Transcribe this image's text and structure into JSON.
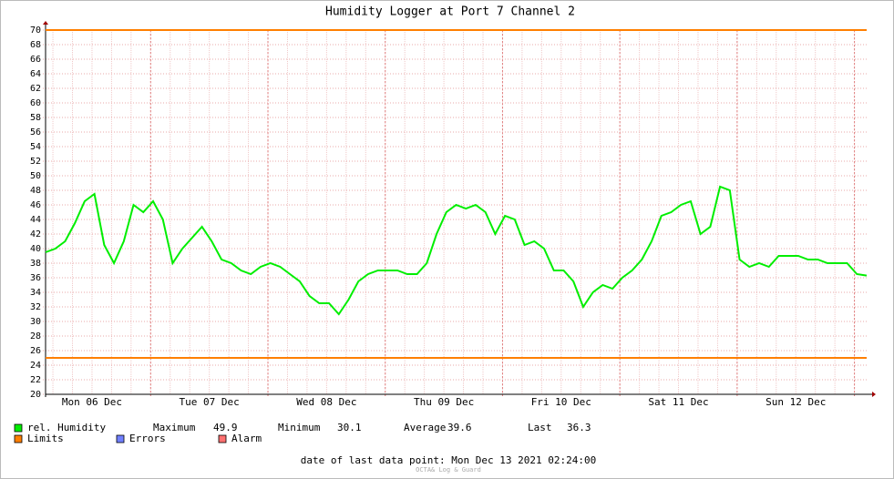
{
  "chart_data": {
    "type": "line",
    "title": "Humidity Logger at Port 7 Channel 2",
    "x": [
      0,
      1,
      2,
      3,
      4,
      5,
      6,
      7,
      8,
      9,
      10,
      11,
      12,
      13,
      14,
      15,
      16,
      17,
      18,
      19,
      20,
      21,
      22,
      23,
      24,
      25,
      26,
      27,
      28,
      29,
      30,
      31,
      32,
      33,
      34,
      35,
      36,
      37,
      38,
      39,
      40,
      41,
      42,
      43,
      44,
      45,
      46,
      47,
      48,
      49,
      50,
      51,
      52,
      53,
      54,
      55,
      56,
      57,
      58,
      59,
      60,
      61,
      62,
      63,
      64,
      65,
      66,
      67,
      68,
      69,
      70,
      71,
      72,
      73,
      74,
      75,
      76,
      77,
      78,
      79,
      80,
      81,
      82,
      83,
      84
    ],
    "series": [
      {
        "name": "rel. Humidity",
        "color": "#00ee00",
        "values": [
          39.5,
          40,
          41,
          43.5,
          46.5,
          47.5,
          40.5,
          38,
          41,
          46,
          45,
          46.5,
          44,
          38,
          40,
          41.5,
          43,
          41,
          38.5,
          38,
          37,
          36.5,
          37.5,
          38,
          37.5,
          36.5,
          35.5,
          33.5,
          32.5,
          32.5,
          31,
          33,
          35.5,
          36.5,
          37,
          37,
          37,
          36.5,
          36.5,
          38,
          42,
          45,
          46,
          45.5,
          46,
          45,
          42,
          44.5,
          44,
          40.5,
          41,
          40,
          37,
          37,
          35.5,
          32,
          34,
          35,
          34.5,
          36,
          37,
          38.5,
          41,
          44.5,
          45,
          46,
          46.5,
          42,
          43,
          48.5,
          48,
          38.5,
          37.5,
          38,
          37.5,
          39,
          39,
          39,
          38.5,
          38.5,
          38,
          38,
          38,
          36.5,
          36.3
        ]
      }
    ],
    "limits": {
      "name": "Limits",
      "color": "#ff7f00",
      "values": [
        70,
        25
      ]
    },
    "legend_extra": [
      {
        "name": "Errors",
        "color": "#7080ff"
      },
      {
        "name": "Alarm",
        "color": "#ff7070"
      }
    ],
    "stats": [
      {
        "label": "Maximum",
        "value": 49.9
      },
      {
        "label": "Minimum",
        "value": 30.1
      },
      {
        "label": "Average",
        "value": 39.6
      },
      {
        "label": "Last",
        "value": 36.3
      }
    ],
    "footer": "date of last data point:  Mon Dec 13 2021 02:24:00",
    "watermark": "OCTA& Log & Guard",
    "xlim": [
      0,
      84
    ],
    "xticks": [
      {
        "value": 4.75,
        "label": "Mon 06 Dec"
      },
      {
        "value": 16.75,
        "label": "Tue 07 Dec"
      },
      {
        "value": 28.75,
        "label": "Wed 08 Dec"
      },
      {
        "value": 40.75,
        "label": "Thu 09 Dec"
      },
      {
        "value": 52.75,
        "label": "Fri 10 Dec"
      },
      {
        "value": 64.75,
        "label": "Sat 11 Dec"
      },
      {
        "value": 76.75,
        "label": "Sun 12 Dec"
      }
    ],
    "ylim": [
      20,
      70
    ],
    "yticks": [
      20,
      22,
      24,
      26,
      28,
      30,
      32,
      34,
      36,
      38,
      40,
      42,
      44,
      46,
      48,
      50,
      52,
      54,
      56,
      58,
      60,
      62,
      64,
      66,
      68,
      70
    ],
    "grid": true
  }
}
